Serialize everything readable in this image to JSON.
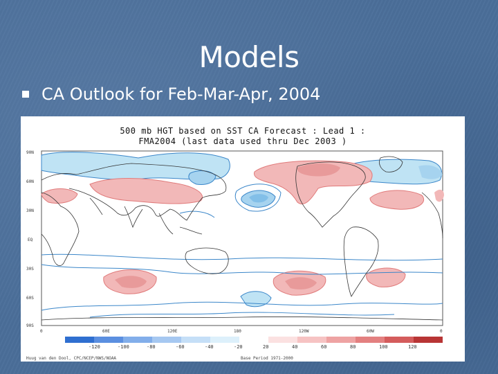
{
  "slide": {
    "title": "Models",
    "bullet": "CA Outlook for Feb-Mar-Apr, 2004"
  },
  "map": {
    "title_line1": "500 mb HGT based on SST CA Forecast : Lead 1 :",
    "title_line2": "FMA2004 (last data used thru Dec 2003 )",
    "lat_labels": [
      "90N",
      "60N",
      "30N",
      "EQ",
      "30S",
      "60S",
      "90S"
    ],
    "lon_labels": [
      "0",
      "60E",
      "120E",
      "180",
      "120W",
      "60W",
      "0"
    ],
    "colorbar": {
      "labels": [
        "-120",
        "-100",
        "-80",
        "-60",
        "-40",
        "-20",
        "20",
        "40",
        "60",
        "80",
        "100",
        "120"
      ],
      "negative_colors": [
        "#2f6fd0",
        "#5b8fe0",
        "#82aeea",
        "#a6c8f1",
        "#c5dff7",
        "#ddf0fb"
      ],
      "positive_colors": [
        "#fbe1e1",
        "#f6c3c3",
        "#eea3a3",
        "#e38080",
        "#d45c5c",
        "#b83535"
      ]
    },
    "footer_left": "Huug van den Dool, CPC/NCEP/NWS/NOAA",
    "footer_right": "Base Period 1971-2000",
    "colors": {
      "positive": "#f2b8b8",
      "negative": "#bfe3f4",
      "contour_pos": "#e07a7a",
      "contour_neg": "#3a86c9",
      "coast": "#333333"
    }
  }
}
